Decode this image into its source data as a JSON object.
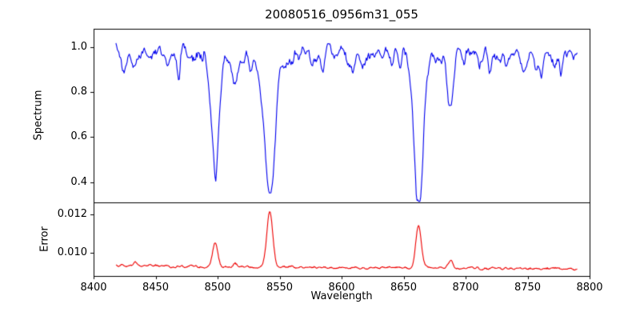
{
  "figure": {
    "background": "#ffffff",
    "axes_color": "#000000"
  },
  "chart_data": [
    {
      "type": "line",
      "series_name": "spectrum",
      "title": "20080516_0956m31_055",
      "xlabel": "Wavelength",
      "ylabel": "Spectrum",
      "color": "#0000ee",
      "grid": false,
      "legend": null,
      "xlim": [
        8400,
        8800
      ],
      "ylim": [
        0.31,
        1.08
      ],
      "x_ticks": [
        8400,
        8450,
        8500,
        8550,
        8600,
        8650,
        8700,
        8750,
        8800
      ],
      "x_tick_labels": [
        "8400",
        "8450",
        "8500",
        "8550",
        "8600",
        "8650",
        "8700",
        "8750",
        "8800"
      ],
      "y_ticks": [
        0.4,
        0.6,
        0.8,
        1.0
      ],
      "y_tick_labels": [
        "0.4",
        "0.6",
        "0.8",
        "1.0"
      ],
      "x_data_range": [
        8418,
        8790
      ],
      "continuum_level": 0.97,
      "noise_amplitude": 0.013,
      "absorption_lines": [
        {
          "center": 8433.0,
          "depth": 0.09,
          "width": 1.6
        },
        {
          "center": 8468.0,
          "depth": 0.06,
          "width": 1.5
        },
        {
          "center": 8498.0,
          "depth": 0.46,
          "width": 3.2
        },
        {
          "center": 8514.0,
          "depth": 0.14,
          "width": 2.2
        },
        {
          "center": 8542.1,
          "depth": 0.64,
          "width": 4.2
        },
        {
          "center": 8662.1,
          "depth": 0.63,
          "width": 3.8
        },
        {
          "center": 8688.0,
          "depth": 0.23,
          "width": 2.2
        }
      ]
    },
    {
      "type": "line",
      "series_name": "error",
      "ylabel": "Error",
      "color": "#ee0000",
      "grid": false,
      "legend": null,
      "xlim": [
        8400,
        8800
      ],
      "ylim": [
        0.0088,
        0.0126
      ],
      "y_ticks": [
        0.01,
        0.012
      ],
      "y_tick_labels": [
        "0.010",
        "0.012"
      ],
      "baseline_level": 0.0093,
      "noise_amplitude": 5e-05,
      "error_peaks": [
        {
          "center": 8434.0,
          "height": 0.0002,
          "width": 1.8
        },
        {
          "center": 8498.0,
          "height": 0.0013,
          "width": 2.0
        },
        {
          "center": 8514.0,
          "height": 0.00015,
          "width": 1.6
        },
        {
          "center": 8542.1,
          "height": 0.0029,
          "width": 2.4
        },
        {
          "center": 8662.1,
          "height": 0.0022,
          "width": 2.2
        },
        {
          "center": 8688.0,
          "height": 0.0004,
          "width": 1.8
        }
      ]
    }
  ]
}
